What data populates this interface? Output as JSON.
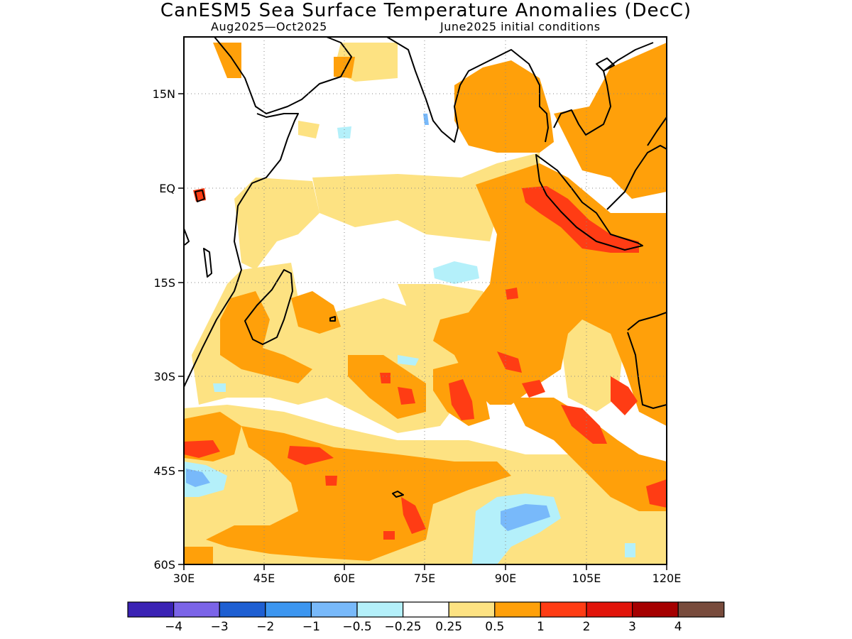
{
  "title": "CanESM5 Sea Surface Temperature Anomalies (DecC)",
  "subtitle_left": "Aug2025—Oct2025",
  "subtitle_right": "June2025 initial conditions",
  "map": {
    "lon_range": [
      30,
      120
    ],
    "lat_range": [
      -60,
      24
    ],
    "x_ticks": [
      "30E",
      "45E",
      "60E",
      "75E",
      "90E",
      "105E",
      "120E"
    ],
    "y_ticks": [
      "15N",
      "EQ",
      "15S",
      "30S",
      "45S",
      "60S"
    ],
    "grid": true
  },
  "colorbar": {
    "colors": [
      "#3a22b4",
      "#7b64e8",
      "#1e5fd2",
      "#3c96f0",
      "#78b9fa",
      "#b4f0fa",
      "#ffffff",
      "#fde282",
      "#ffa00a",
      "#ff3c14",
      "#e1140a",
      "#a50000",
      "#784b3c"
    ],
    "labels": [
      "−4",
      "−3",
      "−2",
      "−1",
      "−0.5",
      "−0.25",
      "0.25",
      "0.5",
      "1",
      "2",
      "3",
      "4"
    ]
  }
}
